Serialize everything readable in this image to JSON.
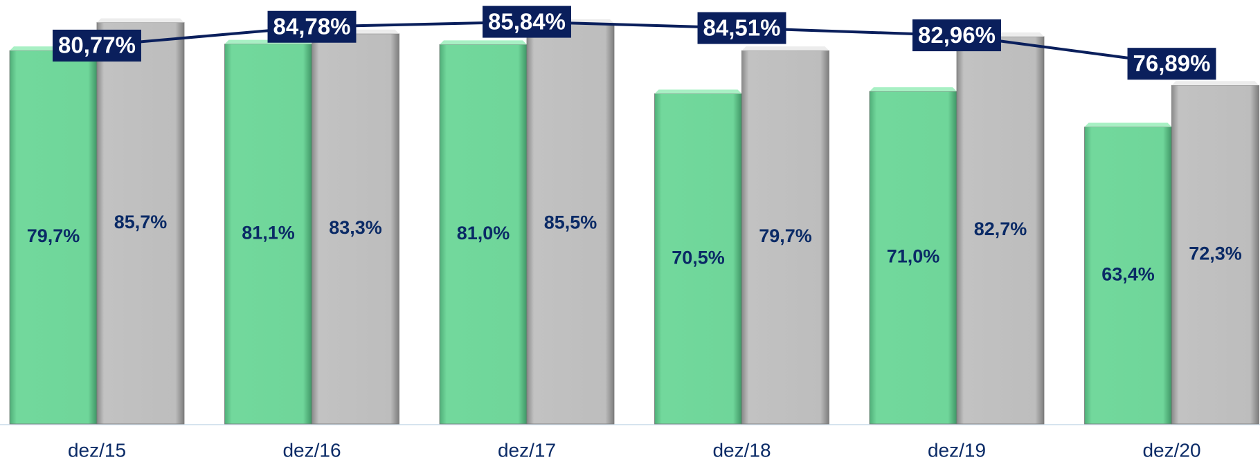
{
  "chart_data": {
    "type": "bar",
    "categories": [
      "dez/15",
      "dez/16",
      "dez/17",
      "dez/18",
      "dez/19",
      "dez/20"
    ],
    "series": [
      {
        "color": "#6fd69a",
        "values": [
          79.7,
          81.1,
          81.0,
          70.5,
          71.0,
          63.4
        ],
        "value_labels": [
          "79,7%",
          "81,1%",
          "81,0%",
          "70,5%",
          "71,0%",
          "63,4%"
        ]
      },
      {
        "color": "#bdbdbd",
        "values": [
          85.7,
          83.3,
          85.5,
          79.7,
          82.7,
          72.3
        ],
        "value_labels": [
          "85,7%",
          "83,3%",
          "85,5%",
          "79,7%",
          "82,7%",
          "72,3%"
        ]
      },
      {
        "type": "line",
        "color": "#0a1f5c",
        "values": [
          80.77,
          84.78,
          85.84,
          84.51,
          82.96,
          76.89
        ],
        "value_labels": [
          "80,77%",
          "84,78%",
          "85,84%",
          "84,51%",
          "82,96%",
          "76,89%"
        ]
      }
    ],
    "ylim": [
      0,
      90.5
    ]
  }
}
